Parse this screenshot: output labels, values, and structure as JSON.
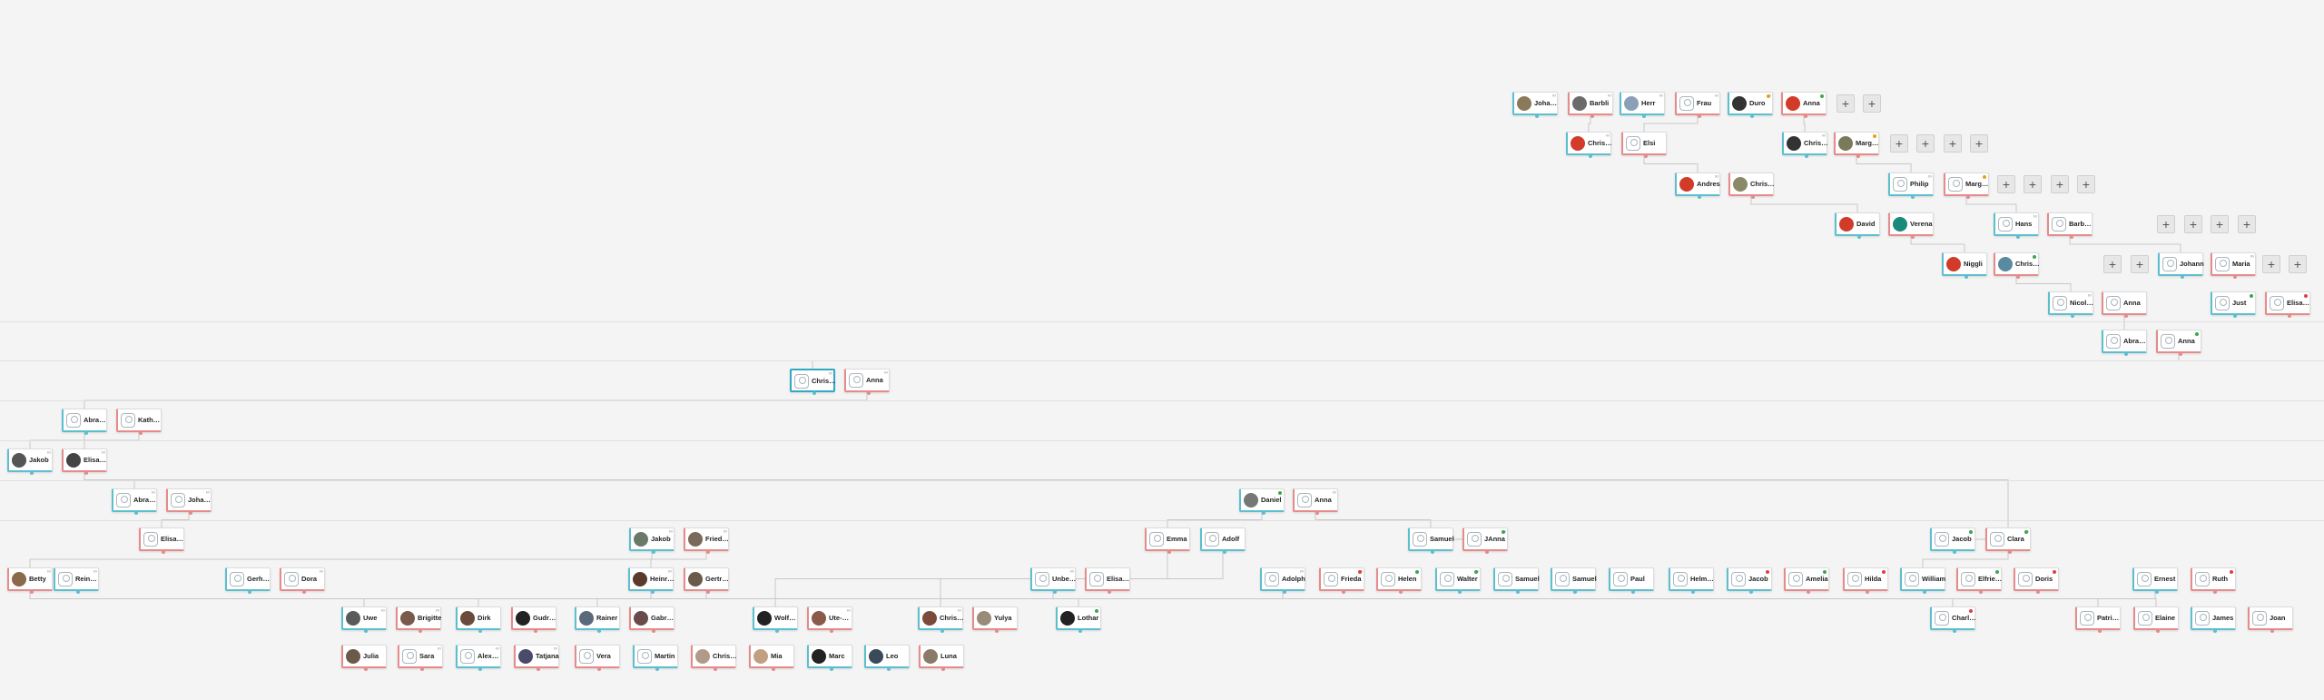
{
  "tree": {
    "people": [
      {
        "name": "Johan...",
        "g": "m",
        "a": "photo",
        "c": "#8a7a5a"
      },
      {
        "name": "Barbli",
        "g": "f",
        "a": "photo",
        "c": "#6b6b6b"
      },
      {
        "name": "Herr",
        "g": "m",
        "a": "photo",
        "c": "#8aa0b8"
      },
      {
        "name": "Frau",
        "g": "f",
        "a": "ph"
      },
      {
        "name": "Duro",
        "g": "m",
        "a": "photo",
        "c": "#333"
      },
      {
        "name": "Anna",
        "g": "f",
        "a": "photo",
        "c": "#d23a2a"
      },
      {
        "name": "Christen",
        "g": "m",
        "a": "photo",
        "c": "#d23a2a"
      },
      {
        "name": "Elsi",
        "g": "f",
        "a": "ph"
      },
      {
        "name": "Christen",
        "g": "m",
        "a": "photo",
        "c": "#333"
      },
      {
        "name": "Margar...",
        "g": "f",
        "a": "photo",
        "c": "#7a7a5a"
      },
      {
        "name": "Andres",
        "g": "m",
        "a": "photo",
        "c": "#d23a2a"
      },
      {
        "name": "Christi...",
        "g": "f",
        "a": "photo",
        "c": "#8a8a6a"
      },
      {
        "name": "Philip",
        "g": "m",
        "a": "ph"
      },
      {
        "name": "Margret",
        "g": "f",
        "a": "ph"
      },
      {
        "name": "David",
        "g": "m",
        "a": "photo",
        "c": "#d23a2a"
      },
      {
        "name": "Verena",
        "g": "f",
        "a": "photo",
        "c": "#1a8a7a"
      },
      {
        "name": "Hans",
        "g": "m",
        "a": "ph"
      },
      {
        "name": "Barbara",
        "g": "f",
        "a": "ph"
      },
      {
        "name": "Niggli",
        "g": "m",
        "a": "photo",
        "c": "#d23a2a"
      },
      {
        "name": "Christi...",
        "g": "f",
        "a": "photo",
        "c": "#5a8aa0"
      },
      {
        "name": "Johann",
        "g": "m",
        "a": "ph"
      },
      {
        "name": "Maria",
        "g": "f",
        "a": "ph"
      },
      {
        "name": "Nicolaus",
        "g": "m",
        "a": "ph"
      },
      {
        "name": "Anna",
        "g": "f",
        "a": "ph"
      },
      {
        "name": "Just",
        "g": "m",
        "a": "ph"
      },
      {
        "name": "Elisab...",
        "g": "f",
        "a": "ph"
      },
      {
        "name": "Abrah...",
        "g": "m",
        "a": "ph"
      },
      {
        "name": "Anna",
        "g": "f",
        "a": "ph"
      },
      {
        "name": "Christi...",
        "g": "m",
        "a": "ph"
      },
      {
        "name": "Anna",
        "g": "f",
        "a": "ph"
      },
      {
        "name": "Abrah...",
        "g": "m",
        "a": "ph"
      },
      {
        "name": "Kathar...",
        "g": "f",
        "a": "ph"
      },
      {
        "name": "Jakob",
        "g": "m",
        "a": "photo",
        "c": "#555"
      },
      {
        "name": "Elisab...",
        "g": "f",
        "a": "photo",
        "c": "#444"
      },
      {
        "name": "Abrah...",
        "g": "m",
        "a": "ph"
      },
      {
        "name": "Johanna",
        "g": "f",
        "a": "ph"
      },
      {
        "name": "Daniel",
        "g": "m",
        "a": "photo",
        "c": "#777"
      },
      {
        "name": "Anna",
        "g": "f",
        "a": "ph"
      },
      {
        "name": "Elisab...",
        "g": "f",
        "a": "ph"
      },
      {
        "name": "Jakob",
        "g": "m",
        "a": "photo",
        "c": "#6a7a6a"
      },
      {
        "name": "Frieder...",
        "g": "f",
        "a": "photo",
        "c": "#7a6a5a"
      },
      {
        "name": "Emma",
        "g": "f",
        "a": "ph"
      },
      {
        "name": "Adolf",
        "g": "m",
        "a": "ph"
      },
      {
        "name": "Samuel",
        "g": "m",
        "a": "ph"
      },
      {
        "name": "JAnna",
        "g": "f",
        "a": "ph"
      },
      {
        "name": "Jacob",
        "g": "m",
        "a": "ph"
      },
      {
        "name": "Clara",
        "g": "f",
        "a": "ph"
      },
      {
        "name": "Betty",
        "g": "f",
        "a": "photo",
        "c": "#8a6a4a"
      },
      {
        "name": "Reinho...",
        "g": "m",
        "a": "ph"
      },
      {
        "name": "Gerhard",
        "g": "m",
        "a": "ph"
      },
      {
        "name": "Dora",
        "g": "f",
        "a": "ph"
      },
      {
        "name": "Heinrich",
        "g": "m",
        "a": "photo",
        "c": "#5a3a2a"
      },
      {
        "name": "Gertrud",
        "g": "f",
        "a": "photo",
        "c": "#6a5a4a"
      },
      {
        "name": "Unbek...",
        "g": "m",
        "a": "ph"
      },
      {
        "name": "Elisab...",
        "g": "f",
        "a": "ph"
      },
      {
        "name": "Adolph",
        "g": "m",
        "a": "ph"
      },
      {
        "name": "Frieda",
        "g": "f",
        "a": "ph"
      },
      {
        "name": "Helen",
        "g": "f",
        "a": "ph"
      },
      {
        "name": "Walter",
        "g": "m",
        "a": "ph"
      },
      {
        "name": "Samuel",
        "g": "m",
        "a": "ph"
      },
      {
        "name": "Samuel",
        "g": "m",
        "a": "ph"
      },
      {
        "name": "Paul",
        "g": "m",
        "a": "ph"
      },
      {
        "name": "Helmut J",
        "g": "m",
        "a": "ph"
      },
      {
        "name": "Jacob",
        "g": "m",
        "a": "ph"
      },
      {
        "name": "Amelia",
        "g": "f",
        "a": "ph"
      },
      {
        "name": "Hilda",
        "g": "f",
        "a": "ph"
      },
      {
        "name": "William",
        "g": "m",
        "a": "ph"
      },
      {
        "name": "Elfriede",
        "g": "f",
        "a": "ph"
      },
      {
        "name": "Doris",
        "g": "f",
        "a": "ph"
      },
      {
        "name": "Ernest",
        "g": "m",
        "a": "ph"
      },
      {
        "name": "Ruth",
        "g": "f",
        "a": "ph"
      },
      {
        "name": "Uwe",
        "g": "m",
        "a": "photo",
        "c": "#5a5a5a"
      },
      {
        "name": "Brigitte",
        "g": "f",
        "a": "photo",
        "c": "#7a5a4a"
      },
      {
        "name": "Dirk",
        "g": "m",
        "a": "photo",
        "c": "#6a4a3a"
      },
      {
        "name": "Gudrun",
        "g": "f",
        "a": "photo",
        "c": "#222"
      },
      {
        "name": "Rainer",
        "g": "m",
        "a": "photo",
        "c": "#5a6a7a"
      },
      {
        "name": "Gabriele",
        "g": "f",
        "a": "photo",
        "c": "#6a4a4a"
      },
      {
        "name": "Wolfga...",
        "g": "m",
        "a": "photo",
        "c": "#222"
      },
      {
        "name": "Ute-Bri...",
        "g": "f",
        "a": "photo",
        "c": "#8a5a4a"
      },
      {
        "name": "Christi...",
        "g": "m",
        "a": "photo",
        "c": "#7a4a3a"
      },
      {
        "name": "Yulya",
        "g": "f",
        "a": "photo",
        "c": "#9a8a7a"
      },
      {
        "name": "Lothar",
        "g": "m",
        "a": "photo",
        "c": "#222"
      },
      {
        "name": "Charles",
        "g": "m",
        "a": "ph"
      },
      {
        "name": "Patricia",
        "g": "f",
        "a": "ph"
      },
      {
        "name": "Elaine",
        "g": "f",
        "a": "ph"
      },
      {
        "name": "James",
        "g": "m",
        "a": "ph"
      },
      {
        "name": "Joan",
        "g": "f",
        "a": "ph"
      },
      {
        "name": "Julia",
        "g": "f",
        "a": "photo",
        "c": "#6a5a4a"
      },
      {
        "name": "Sara",
        "g": "f",
        "a": "ph"
      },
      {
        "name": "Alexan...",
        "g": "m",
        "a": "ph"
      },
      {
        "name": "Tatjana",
        "g": "f",
        "a": "photo",
        "c": "#4a4a6a"
      },
      {
        "name": "Vera",
        "g": "f",
        "a": "ph"
      },
      {
        "name": "Martin",
        "g": "m",
        "a": "ph"
      },
      {
        "name": "Christ...",
        "g": "f",
        "a": "photo",
        "c": "#b09a8a"
      },
      {
        "name": "Mia",
        "g": "f",
        "a": "photo",
        "c": "#c0a080"
      },
      {
        "name": "Marc",
        "g": "m",
        "a": "photo",
        "c": "#222"
      },
      {
        "name": "Leo",
        "g": "m",
        "a": "photo",
        "c": "#3a4a5a"
      },
      {
        "name": "Luna",
        "g": "f",
        "a": "photo",
        "c": "#8a7a6a"
      }
    ],
    "add_label": "+"
  }
}
